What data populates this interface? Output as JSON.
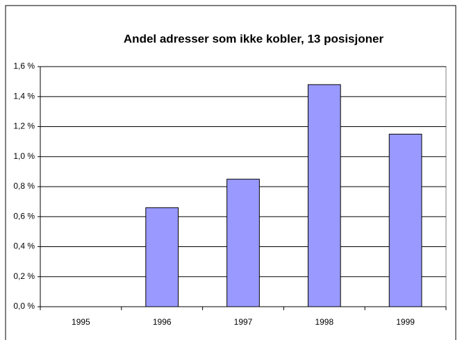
{
  "chart_data": {
    "type": "bar",
    "title": "Andel adresser som ikke kobler, 13 posisjoner",
    "categories": [
      "1995",
      "1996",
      "1997",
      "1998",
      "1999"
    ],
    "values": [
      null,
      0.66,
      0.85,
      1.48,
      1.15
    ],
    "color": "#9999ff",
    "ylim": [
      0,
      1.6
    ],
    "yticks": [
      {
        "value": 0,
        "label": "0,0 %"
      },
      {
        "value": 0.2,
        "label": "0,2 %"
      },
      {
        "value": 0.4,
        "label": "0,4 %"
      },
      {
        "value": 0.6,
        "label": "0,6 %"
      },
      {
        "value": 0.8,
        "label": "0,8 %"
      },
      {
        "value": 1.0,
        "label": "1,0 %"
      },
      {
        "value": 1.2,
        "label": "1,2 %"
      },
      {
        "value": 1.4,
        "label": "1,4 %"
      },
      {
        "value": 1.6,
        "label": "1,6 %"
      }
    ],
    "grid": true
  }
}
